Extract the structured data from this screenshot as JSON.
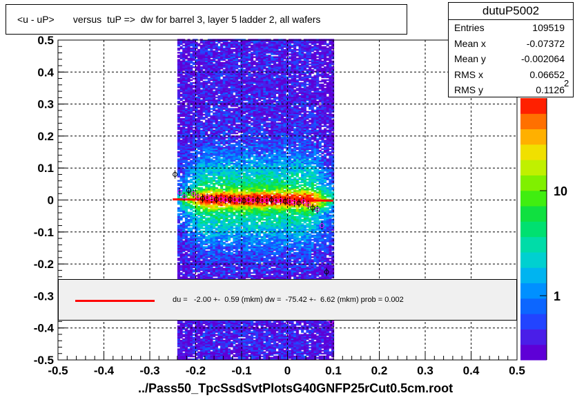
{
  "title": "<u - uP>       versus  tuP =>  dw for barrel 3, layer 5 ladder 2, all wafers",
  "stats": {
    "name": "dutuP5002",
    "rows": [
      {
        "label": "Entries",
        "value": "109519"
      },
      {
        "label": "Mean x",
        "value": "-0.07372"
      },
      {
        "label": "Mean y",
        "value": "-0.002064"
      },
      {
        "label": "RMS x",
        "value": "0.06652"
      },
      {
        "label": "RMS y",
        "value": "0.1126"
      }
    ]
  },
  "fit_text": "du =   -2.00 +-  0.59 (mkm) dw =  -75.42 +-  6.62 (mkm) prob = 0.002",
  "x_axis_title": "../Pass50_TpcSsdSvtPlotsG40GNFP25rCut0.5cm.root",
  "colorbar_exponent": "2",
  "colors": {
    "fit_line": "#ff0000",
    "frame": "#000000"
  },
  "chart_data": {
    "type": "heatmap",
    "xlim": [
      -0.5,
      0.5
    ],
    "ylim": [
      -0.5,
      0.5
    ],
    "x_ticks": [
      "-0.5",
      "-0.4",
      "-0.3",
      "-0.2",
      "-0.1",
      "0",
      "0.1",
      "0.2",
      "0.3",
      "0.4",
      "0.5"
    ],
    "y_ticks": [
      "-0.5",
      "-0.4",
      "-0.3",
      "-0.2",
      "-0.1",
      "0",
      "0.1",
      "0.2",
      "0.3",
      "0.4",
      "0.5"
    ],
    "colorbar_ticks": [
      "1",
      "10"
    ],
    "colorbar_log": true,
    "grid": true,
    "occupied_x_range": [
      -0.24,
      0.1
    ],
    "fit_line": {
      "x": [
        -0.25,
        0.1
      ],
      "y": [
        0.002,
        -0.002
      ]
    },
    "profile_points": [
      {
        "x": -0.245,
        "y": 0.08
      },
      {
        "x": -0.235,
        "y": 0.025
      },
      {
        "x": -0.225,
        "y": 0.01
      },
      {
        "x": -0.215,
        "y": 0.03
      },
      {
        "x": -0.205,
        "y": 0.02
      },
      {
        "x": -0.195,
        "y": 0.01
      },
      {
        "x": -0.185,
        "y": 0.005
      },
      {
        "x": -0.175,
        "y": 0.008
      },
      {
        "x": -0.165,
        "y": 0.004
      },
      {
        "x": -0.155,
        "y": 0.002
      },
      {
        "x": -0.145,
        "y": 0.003
      },
      {
        "x": -0.135,
        "y": 0.0
      },
      {
        "x": -0.125,
        "y": 0.002
      },
      {
        "x": -0.115,
        "y": 0.001
      },
      {
        "x": -0.105,
        "y": 0.0
      },
      {
        "x": -0.095,
        "y": -0.002
      },
      {
        "x": -0.085,
        "y": 0.001
      },
      {
        "x": -0.075,
        "y": -0.001
      },
      {
        "x": -0.065,
        "y": 0.0
      },
      {
        "x": -0.055,
        "y": -0.002
      },
      {
        "x": -0.045,
        "y": -0.001
      },
      {
        "x": -0.035,
        "y": 0.0
      },
      {
        "x": -0.025,
        "y": -0.003
      },
      {
        "x": -0.015,
        "y": -0.002
      },
      {
        "x": -0.005,
        "y": -0.004
      },
      {
        "x": 0.005,
        "y": -0.005
      },
      {
        "x": 0.015,
        "y": -0.008
      },
      {
        "x": 0.025,
        "y": -0.01
      },
      {
        "x": 0.035,
        "y": -0.005
      },
      {
        "x": 0.045,
        "y": -0.015
      },
      {
        "x": 0.055,
        "y": -0.025
      },
      {
        "x": 0.065,
        "y": -0.03
      },
      {
        "x": 0.075,
        "y": -0.08
      },
      {
        "x": 0.085,
        "y": -0.225
      },
      {
        "x": 0.095,
        "y": -0.38
      }
    ]
  }
}
